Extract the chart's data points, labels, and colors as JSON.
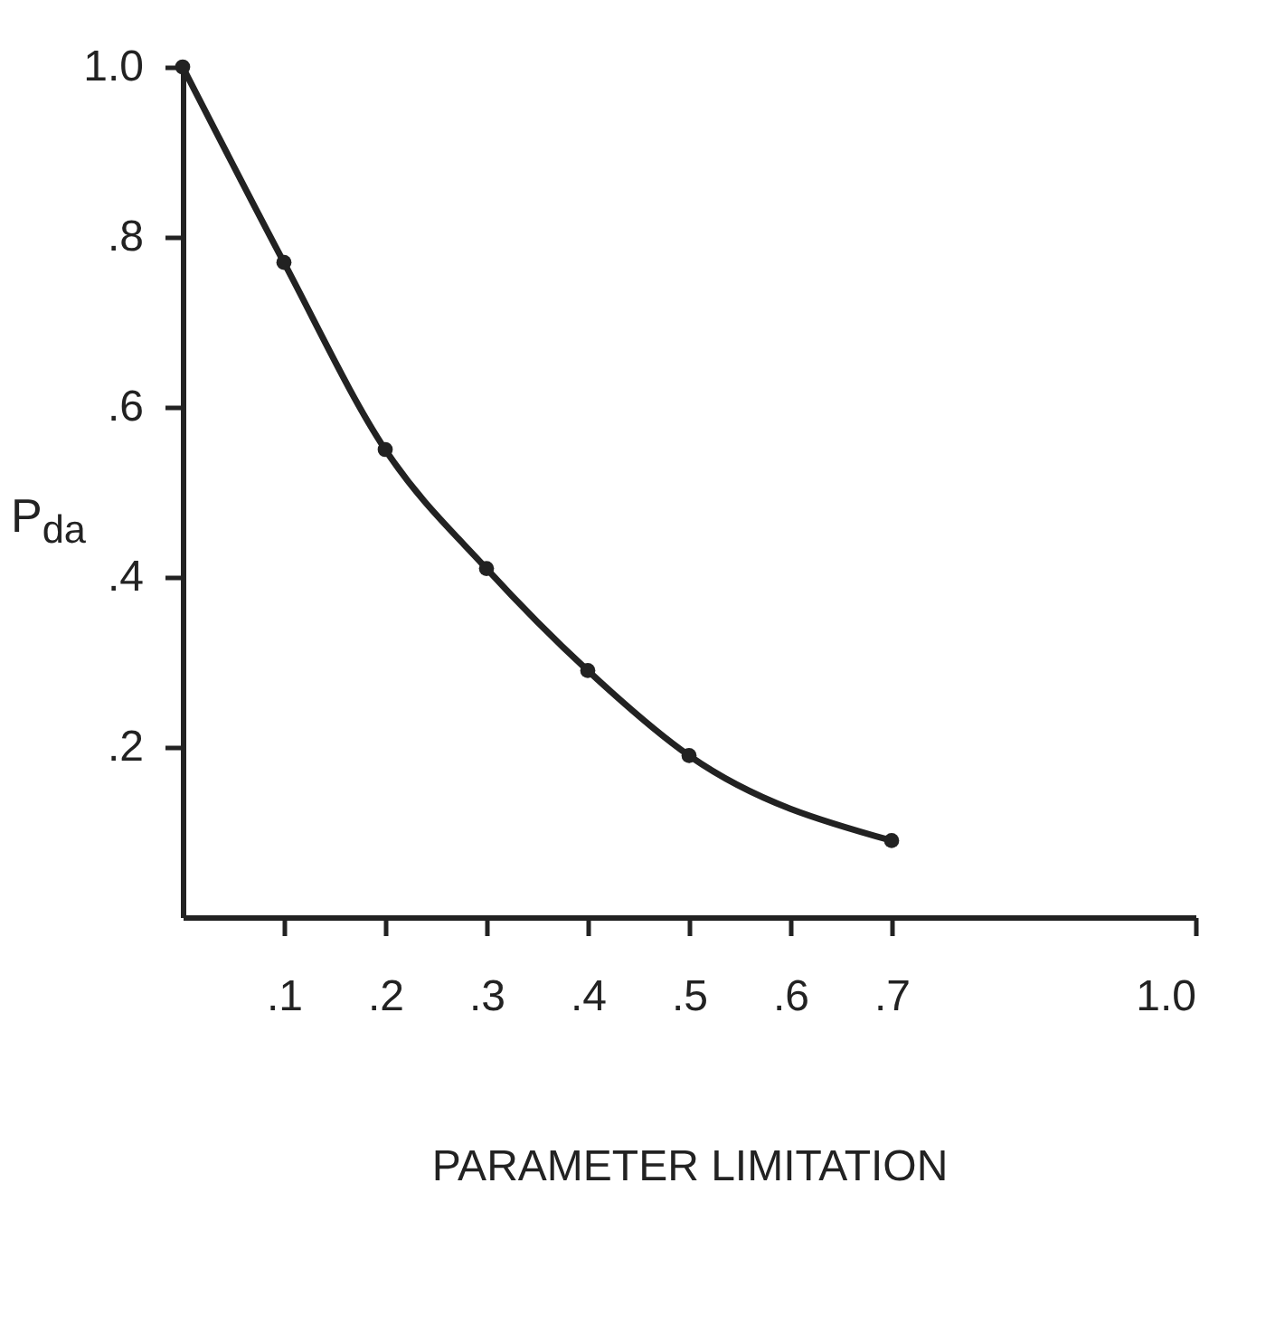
{
  "chart_data": {
    "type": "line",
    "xlabel": "PARAMETER LIMITATION",
    "ylabel": "P$_{da}$",
    "x": [
      0,
      0.1,
      0.2,
      0.3,
      0.4,
      0.5,
      0.7
    ],
    "series": [
      {
        "color": "#222222",
        "values": [
          1.0,
          0.77,
          0.55,
          0.41,
          0.29,
          0.19,
          0.09
        ]
      }
    ],
    "xlim": [
      0,
      1.0
    ],
    "xticks": [
      {
        "value": 0.1,
        "label": ".1"
      },
      {
        "value": 0.2,
        "label": ".2"
      },
      {
        "value": 0.3,
        "label": ".3"
      },
      {
        "value": 0.4,
        "label": ".4"
      },
      {
        "value": 0.5,
        "label": ".5"
      },
      {
        "value": 0.6,
        "label": ".6"
      },
      {
        "value": 0.7,
        "label": ".7"
      },
      {
        "value": 1.0,
        "label": "1.0"
      }
    ],
    "ylim": [
      0,
      1.0
    ],
    "yticks": [
      {
        "value": 0.2,
        "label": ".2"
      },
      {
        "value": 0.4,
        "label": ".4"
      },
      {
        "value": 0.6,
        "label": ".6"
      },
      {
        "value": 0.8,
        "label": ".8"
      },
      {
        "value": 1.0,
        "label": "1.0"
      }
    ],
    "marker": "circle",
    "line_style": "solid",
    "grid": false
  }
}
